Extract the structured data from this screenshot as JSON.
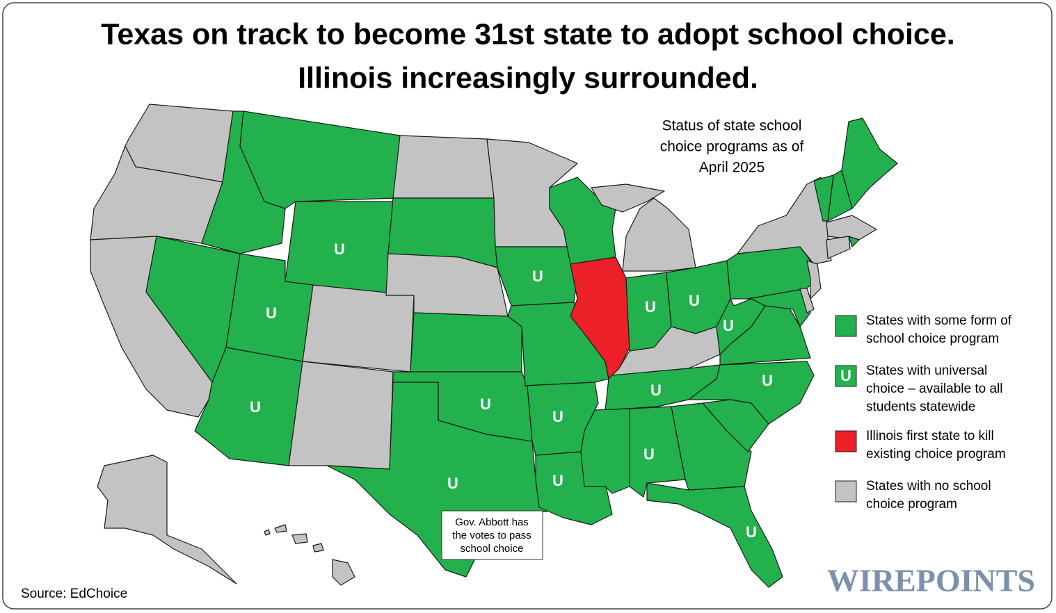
{
  "header": {
    "title": [
      "Texas on track to become 31st state to adopt school choice.",
      "Illinois increasingly surrounded."
    ],
    "subtitle": [
      "Status of state school",
      "choice programs as of",
      "April 2025"
    ]
  },
  "legend": [
    {
      "color": "#22b14c",
      "label": [
        "States with some form of",
        "school choice program"
      ]
    },
    {
      "color": "#22b14c",
      "symbol": "U",
      "label": [
        "States with universal",
        "choice – available to all",
        "students statewide"
      ]
    },
    {
      "color": "#ec2029",
      "label": [
        "Illinois first state to kill",
        "existing choice program"
      ]
    },
    {
      "color": "#c3c3c3",
      "label": [
        "States with no school",
        "choice program"
      ]
    }
  ],
  "states": [
    {
      "legend": 3
    },
    {
      "legend": 3
    },
    {
      "legend": 3
    },
    {
      "legend": 0
    },
    {
      "legend": 0
    },
    {
      "legend": 1,
      "label": "U"
    },
    {
      "legend": 0
    },
    {
      "legend": 1,
      "label": "U"
    },
    {
      "legend": 1,
      "label": "U"
    },
    {
      "legend": 3
    },
    {
      "legend": 3
    },
    {
      "legend": 3
    },
    {
      "legend": 0
    },
    {
      "legend": 3
    },
    {
      "legend": 0
    },
    {
      "legend": 1,
      "label": "U"
    },
    {
      "legend": 1,
      "label": "U"
    },
    {
      "legend": 3
    },
    {
      "legend": 1,
      "label": "U"
    },
    {
      "legend": 0
    },
    {
      "legend": 1,
      "label": "U"
    },
    {
      "legend": 1,
      "label": "U"
    },
    {
      "legend": 0
    },
    {
      "legend": 2
    },
    {
      "legend": 3
    },
    {
      "legend": 1,
      "label": "U"
    },
    {
      "legend": 1,
      "label": "U"
    },
    {
      "legend": 3
    },
    {
      "legend": 1,
      "label": "U"
    },
    {
      "legend": 0
    },
    {
      "legend": 1,
      "label": "U"
    },
    {
      "legend": 0
    },
    {
      "legend": 1,
      "label": "U"
    },
    {
      "legend": 0
    },
    {
      "legend": 1,
      "label": "U"
    },
    {
      "legend": 0
    },
    {
      "legend": 1,
      "label": "U"
    },
    {
      "legend": 0
    },
    {
      "legend": 3
    },
    {
      "legend": 0
    },
    {
      "legend": 3
    },
    {
      "legend": 3
    },
    {
      "legend": 0
    },
    {
      "legend": 0
    },
    {
      "legend": 0
    },
    {
      "legend": 3
    },
    {
      "legend": 3
    },
    {
      "legend": 0
    },
    {
      "legend": 3
    },
    {
      "legend": 3
    }
  ],
  "annotation": [
    "Gov. Abbott has",
    "the votes to pass",
    "school choice"
  ],
  "source": "Source: EdChoice",
  "watermark": "WIREPOINTS"
}
